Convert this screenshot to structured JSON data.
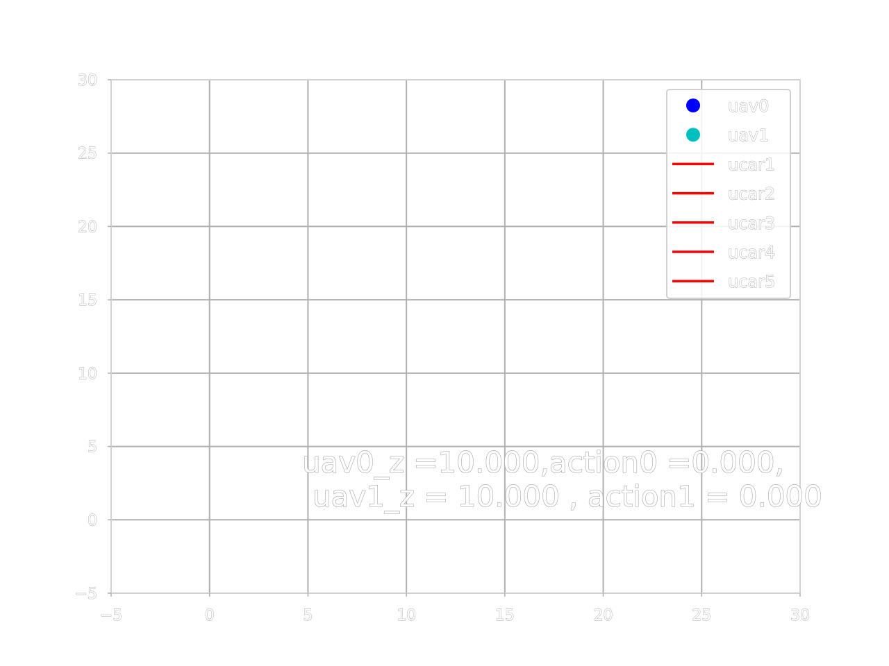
{
  "chart_data": {
    "type": "scatter",
    "title": "",
    "xlabel": "",
    "ylabel": "",
    "xlim": [
      -5,
      30
    ],
    "ylim": [
      -5,
      30
    ],
    "xticks": [
      -5,
      0,
      5,
      10,
      15,
      20,
      25,
      30
    ],
    "yticks": [
      -5,
      0,
      5,
      10,
      15,
      20,
      25,
      30
    ],
    "xtick_labels": [
      "−5",
      "0",
      "5",
      "10",
      "15",
      "20",
      "25",
      "30"
    ],
    "ytick_labels": [
      "−5",
      "0",
      "5",
      "10",
      "15",
      "20",
      "25",
      "30"
    ],
    "grid": true,
    "legend_position": "top-right",
    "series": [
      {
        "name": "uav0",
        "kind": "marker",
        "color": "#0000ff",
        "points": []
      },
      {
        "name": "uav1",
        "kind": "marker",
        "color": "#00bfbf",
        "points": []
      },
      {
        "name": "ucar1",
        "kind": "line",
        "color": "#ff0000",
        "points": []
      },
      {
        "name": "ucar2",
        "kind": "line",
        "color": "#ff0000",
        "points": []
      },
      {
        "name": "ucar3",
        "kind": "line",
        "color": "#ff0000",
        "points": []
      },
      {
        "name": "ucar4",
        "kind": "line",
        "color": "#ff0000",
        "points": []
      },
      {
        "name": "ucar5",
        "kind": "line",
        "color": "#ff0000",
        "points": []
      }
    ],
    "annotations": [
      {
        "text": "uav0_z =10.000,action0 =0.000,"
      },
      {
        "text": "uav1_z = 10.000 , action1 = 0.000"
      }
    ],
    "colors": {
      "grid": "#b0b0b0",
      "frame": "#dcdcdc",
      "background": "#ffffff"
    }
  }
}
